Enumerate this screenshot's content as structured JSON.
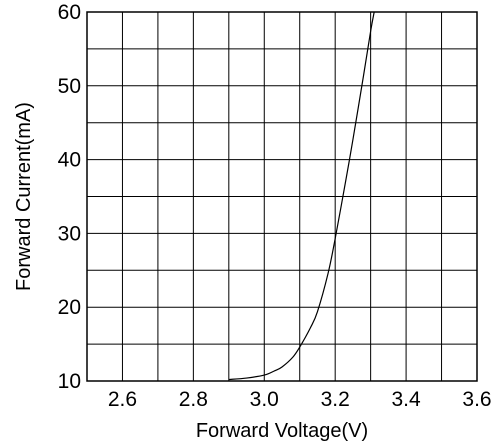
{
  "chart_data": {
    "type": "line",
    "title": "",
    "xlabel": "Forward Voltage(V)",
    "ylabel": "Forward Current(mA)",
    "xlim": [
      2.5,
      3.6
    ],
    "ylim": [
      10,
      60
    ],
    "x_ticks": [
      2.6,
      2.8,
      3.0,
      3.2,
      3.4,
      3.6
    ],
    "x_tick_labels": [
      "2.6",
      "2.8",
      "3.0",
      "3.2",
      "3.4",
      "3.6"
    ],
    "y_ticks": [
      10,
      20,
      30,
      40,
      50,
      60
    ],
    "y_tick_labels": [
      "10",
      "20",
      "30",
      "40",
      "50",
      "60"
    ],
    "grid": true,
    "x_grid_step": 0.1,
    "y_grid_step": 5,
    "series": [
      {
        "color": "#000000",
        "x": [
          2.9,
          2.95,
          3.0,
          3.03,
          3.05,
          3.08,
          3.1,
          3.13,
          3.15,
          3.18,
          3.2,
          3.23,
          3.25,
          3.28,
          3.3,
          3.31
        ],
        "y": [
          10.2,
          10.4,
          10.8,
          11.4,
          11.9,
          13.2,
          14.6,
          17.2,
          19.4,
          24.6,
          29.3,
          37.2,
          42.7,
          51.4,
          57.4,
          60
        ]
      }
    ]
  }
}
